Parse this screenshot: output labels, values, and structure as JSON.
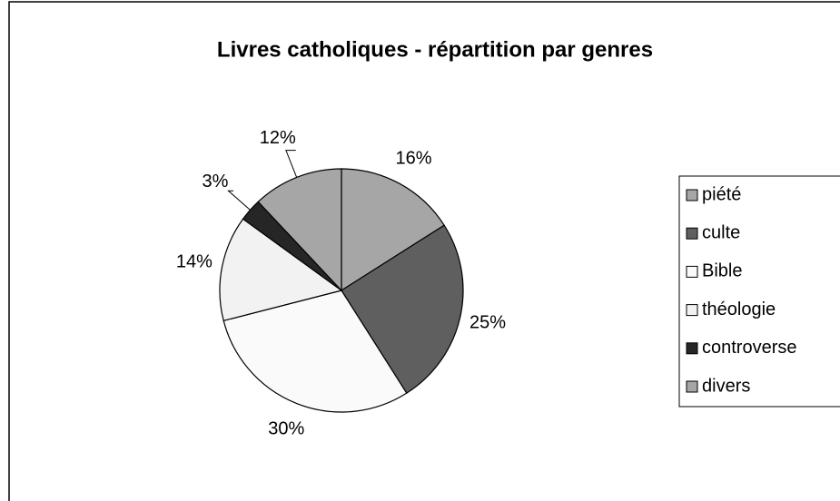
{
  "chart_data": {
    "type": "pie",
    "title": "Livres catholiques - répartition par genres",
    "categories": [
      "piété",
      "culte",
      "Bible",
      "théologie",
      "controverse",
      "divers"
    ],
    "values": [
      16,
      25,
      30,
      14,
      3,
      12
    ],
    "value_labels": [
      "16%",
      "25%",
      "30%",
      "14%",
      "3%",
      "12%"
    ],
    "colors": [
      "#a6a6a6",
      "#5f5f5f",
      "#fafafa",
      "#f2f2f2",
      "#262626",
      "#a6a6a6"
    ],
    "legend": "right"
  }
}
